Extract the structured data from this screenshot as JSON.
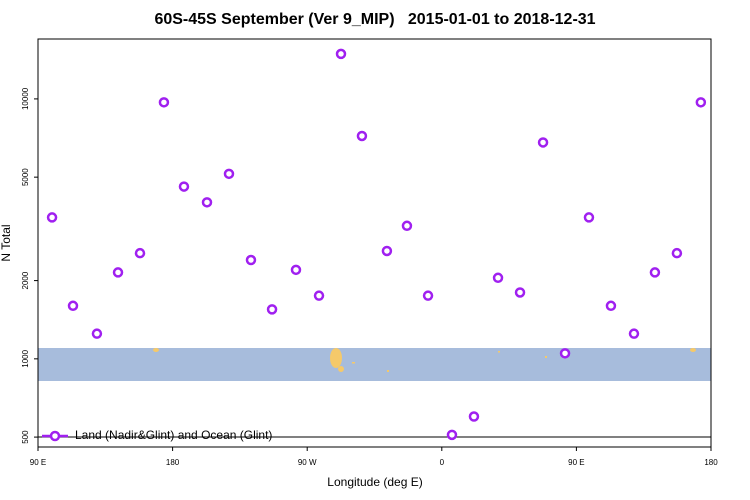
{
  "chart_data": {
    "type": "scatter",
    "title": "60S-45S September (Ver 9_MIP)   2015-01-01 to 2018-12-31",
    "x_label": "Longitude (deg E)",
    "y_label": "N Total",
    "log_y": true,
    "xlim": [
      90,
      540
    ],
    "ylim": [
      458,
      17000
    ],
    "xticks": [
      {
        "value": 90,
        "label": "90 E"
      },
      180,
      {
        "value": 270,
        "label": "90 W"
      },
      {
        "value": 360,
        "label": "0"
      },
      {
        "value": 450,
        "label": "90 E"
      },
      {
        "value": 540,
        "label": "180"
      }
    ],
    "yticks": [
      500,
      1000,
      2000,
      5000,
      10000
    ],
    "legend": "bottom-left",
    "series": [
      {
        "name": "Land (Nadir&Glint) and Ocean (Glint)",
        "color": "#a020f0",
        "x": [
          99.4,
          113.4,
          129.4,
          143.5,
          158.2,
          174.2,
          187.6,
          203,
          217.7,
          232.4,
          246.5,
          262.5,
          277.9,
          292.6,
          306.6,
          323.3,
          336.7,
          350.8,
          366.8,
          381.5,
          397.6,
          412.3,
          427.7,
          442.4,
          458.4,
          473.1,
          488.5,
          502.5,
          517.2,
          533.2
        ],
        "values": [
          3500,
          1600,
          1250,
          2150,
          2550,
          9700,
          4600,
          4000,
          5150,
          2400,
          1550,
          2200,
          1750,
          14900,
          7200,
          2600,
          3250,
          1750,
          510,
          600,
          2050,
          1800,
          6800,
          1050,
          3500,
          1600,
          1250,
          2150,
          2550,
          9700
        ]
      }
    ]
  }
}
